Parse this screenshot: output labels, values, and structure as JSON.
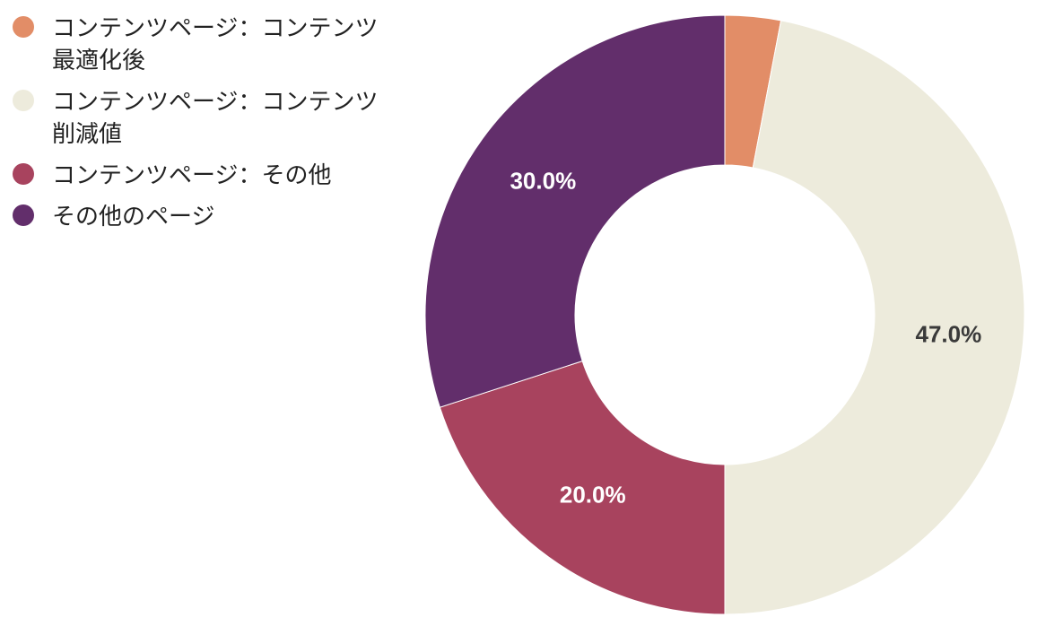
{
  "chart_data": {
    "type": "pie",
    "variant": "donut",
    "legend_position": "top-left",
    "categories": [
      "コンテンツページ：コンテンツ最適化後",
      "コンテンツページ：コンテンツ削減値",
      "コンテンツページ：その他",
      "その他のページ"
    ],
    "values": [
      3.0,
      47.0,
      20.0,
      30.0
    ],
    "colors": [
      "#E28D67",
      "#EDEBDC",
      "#A8435E",
      "#622E6B"
    ],
    "labels": [
      "",
      "47.0%",
      "20.0%",
      "30.0%"
    ],
    "label_colors": [
      "#ffffff",
      "#3a3a3a",
      "#ffffff",
      "#ffffff"
    ]
  }
}
